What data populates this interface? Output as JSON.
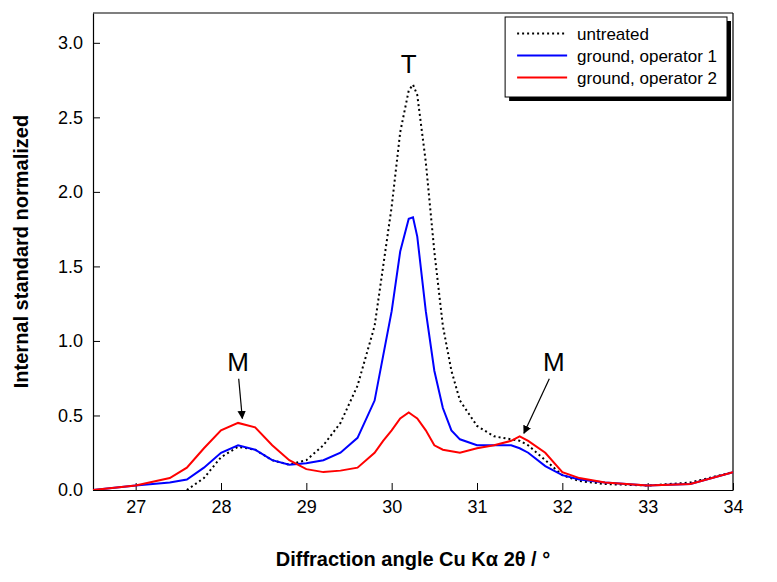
{
  "chart_data": {
    "type": "line",
    "x_label": "Diffraction angle Cu Kα 2θ / °",
    "y_label": "Internal standard normalized",
    "x": [
      26.5,
      27.0,
      27.4,
      27.6,
      27.8,
      28.0,
      28.2,
      28.4,
      28.6,
      28.8,
      29.0,
      29.2,
      29.4,
      29.6,
      29.8,
      29.9,
      30.0,
      30.1,
      30.2,
      30.25,
      30.3,
      30.4,
      30.5,
      30.6,
      30.7,
      30.8,
      31.0,
      31.2,
      31.4,
      31.5,
      31.6,
      31.8,
      32.0,
      32.2,
      32.5,
      33.0,
      33.5,
      34.0
    ],
    "series": [
      {
        "name": "untreated",
        "color": "#000000",
        "line_style": "dotted",
        "values": [
          null,
          null,
          null,
          0.0,
          0.08,
          0.22,
          0.29,
          0.27,
          0.2,
          0.17,
          0.2,
          0.3,
          0.45,
          0.7,
          1.1,
          1.5,
          1.9,
          2.4,
          2.68,
          2.72,
          2.65,
          2.2,
          1.6,
          1.1,
          0.8,
          0.6,
          0.43,
          0.36,
          0.34,
          0.33,
          0.3,
          0.2,
          0.1,
          0.06,
          0.04,
          0.03,
          0.05,
          0.12
        ]
      },
      {
        "name": "ground, operator 1",
        "color": "#0000ff",
        "line_style": "solid",
        "values": [
          0.0,
          0.03,
          0.05,
          0.07,
          0.15,
          0.25,
          0.3,
          0.27,
          0.2,
          0.17,
          0.18,
          0.2,
          0.25,
          0.35,
          0.6,
          0.9,
          1.2,
          1.6,
          1.82,
          1.83,
          1.7,
          1.2,
          0.8,
          0.55,
          0.4,
          0.34,
          0.3,
          0.3,
          0.3,
          0.28,
          0.25,
          0.16,
          0.1,
          0.07,
          0.05,
          0.03,
          0.04,
          0.12
        ]
      },
      {
        "name": "ground, operator 2",
        "color": "#ff0000",
        "line_style": "solid",
        "values": [
          0.0,
          0.03,
          0.08,
          0.15,
          0.28,
          0.4,
          0.45,
          0.42,
          0.3,
          0.2,
          0.14,
          0.12,
          0.13,
          0.15,
          0.25,
          0.33,
          0.4,
          0.48,
          0.52,
          0.5,
          0.48,
          0.4,
          0.3,
          0.27,
          0.26,
          0.25,
          0.28,
          0.3,
          0.33,
          0.36,
          0.33,
          0.25,
          0.12,
          0.08,
          0.05,
          0.03,
          0.04,
          0.12
        ]
      }
    ],
    "xlim": [
      26.5,
      34
    ],
    "xticks": [
      27,
      28,
      29,
      30,
      31,
      32,
      33,
      34
    ],
    "ylim": [
      0,
      3.2
    ],
    "yticks": [
      {
        "value": 0,
        "label": "0.0"
      },
      {
        "value": 0.5,
        "label": "0.5"
      },
      {
        "value": 1,
        "label": "1.0"
      },
      {
        "value": 1.5,
        "label": "1.5"
      },
      {
        "value": 2,
        "label": "2.0"
      },
      {
        "value": 2.5,
        "label": "2.5"
      },
      {
        "value": 3,
        "label": "3.0"
      }
    ],
    "legend": "upper right",
    "grid": false,
    "annotations": [
      {
        "text": "T",
        "x": 30.2,
        "y": 2.8
      },
      {
        "text": "M",
        "x": 28.2,
        "y": 0.8,
        "arrow_x": 28.25,
        "arrow_y": 0.48
      },
      {
        "text": "M",
        "x": 31.9,
        "y": 0.8,
        "arrow_x": 31.55,
        "arrow_y": 0.38
      }
    ]
  }
}
